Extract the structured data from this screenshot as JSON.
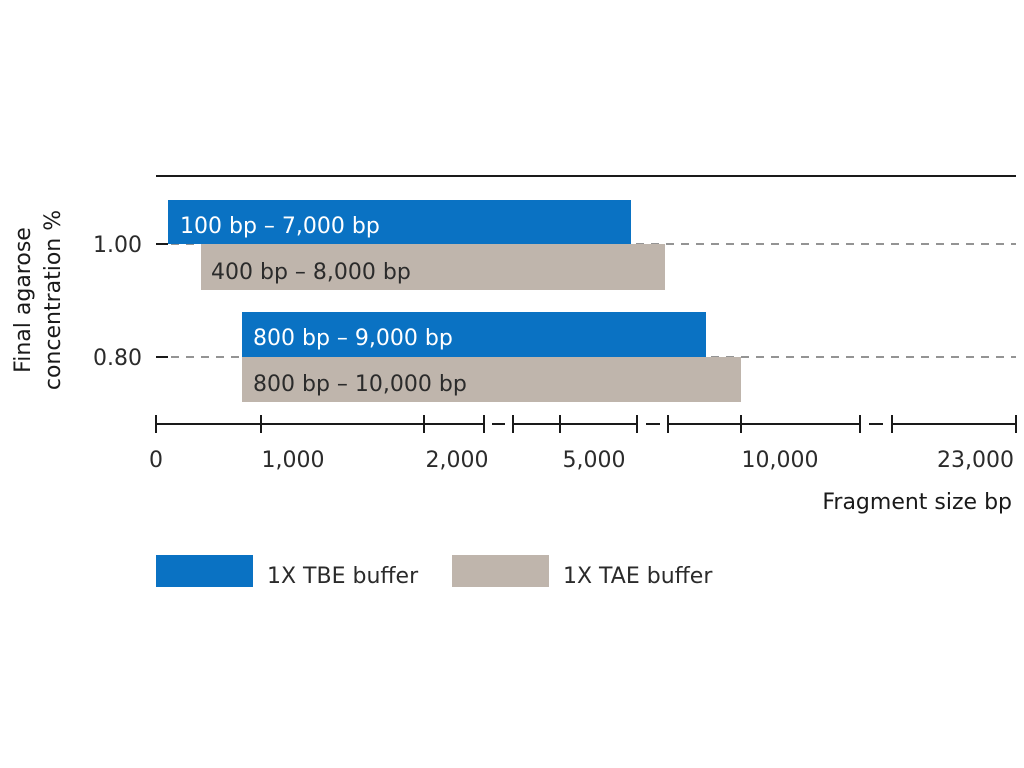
{
  "chart_data": {
    "type": "bar",
    "orientation": "horizontal",
    "xlabel": "Fragment size bp",
    "ylabel_lines": [
      "Final agarose",
      "concentration %"
    ],
    "x_tick_labels": [
      "0",
      "1,000",
      "2,000",
      "5,000",
      "10,000",
      "23,000"
    ],
    "x_axis_breaks": true,
    "y_categories": [
      "1.00",
      "0.80"
    ],
    "series": [
      {
        "name": "1X TBE buffer",
        "color": "#0a72c3"
      },
      {
        "name": "1X TAE buffer",
        "color": "#bfb5ac"
      }
    ],
    "bars": [
      {
        "concentration": "1.00",
        "series": "1X TBE buffer",
        "start": 100,
        "end": 7000,
        "label": "100 bp – 7,000 bp"
      },
      {
        "concentration": "1.00",
        "series": "1X TAE buffer",
        "start": 400,
        "end": 8000,
        "label": "400 bp – 8,000 bp"
      },
      {
        "concentration": "0.80",
        "series": "1X TBE buffer",
        "start": 800,
        "end": 9000,
        "label": "800 bp – 9,000 bp"
      },
      {
        "concentration": "0.80",
        "series": "1X TAE buffer",
        "start": 800,
        "end": 10000,
        "label": "800 bp – 10,000 bp"
      }
    ],
    "gridlines": "dashed"
  }
}
